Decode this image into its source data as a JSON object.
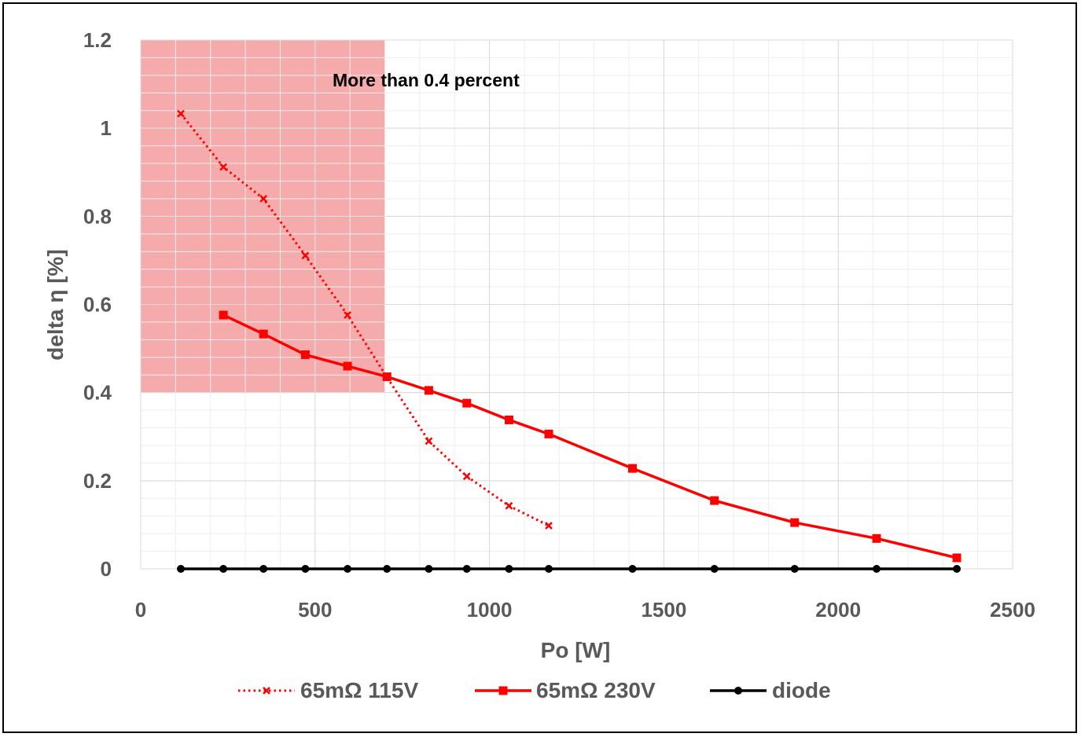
{
  "chart_data": {
    "type": "line",
    "xlabel": "Po [W]",
    "ylabel": "delta η [%]",
    "xlim": [
      0,
      2500
    ],
    "ylim": [
      0,
      1.2
    ],
    "x_ticks": [
      "0",
      "500",
      "1000",
      "1500",
      "2000",
      "2500"
    ],
    "y_ticks": [
      "0",
      "0.2",
      "0.4",
      "0.6",
      "0.8",
      "1",
      "1.2"
    ],
    "grid": true,
    "legend_position": "bottom",
    "shaded_region": {
      "x": [
        0,
        700
      ],
      "y": [
        0.4,
        1.2
      ],
      "color": "#f4a6a6"
    },
    "annotation": "More than 0.4 percent",
    "series": [
      {
        "name": "65mΩ 115V",
        "color": "#ff0000",
        "style": "dotted",
        "marker": "x",
        "x": [
          115,
          237,
          352,
          472,
          593,
          706,
          826,
          935,
          1056,
          1170
        ],
        "y": [
          1.033,
          0.912,
          0.84,
          0.711,
          0.576,
          0.435,
          0.29,
          0.21,
          0.143,
          0.098
        ]
      },
      {
        "name": "65mΩ 230V",
        "color": "#ff0000",
        "style": "solid",
        "marker": "square",
        "x": [
          237,
          352,
          472,
          593,
          706,
          826,
          935,
          1056,
          1170,
          1410,
          1645,
          1875,
          2110,
          2340
        ],
        "y": [
          0.576,
          0.533,
          0.486,
          0.46,
          0.436,
          0.405,
          0.376,
          0.338,
          0.306,
          0.228,
          0.155,
          0.105,
          0.069,
          0.025
        ]
      },
      {
        "name": "diode",
        "color": "#000000",
        "style": "solid",
        "marker": "circle",
        "x": [
          115,
          237,
          352,
          472,
          593,
          706,
          826,
          935,
          1056,
          1170,
          1410,
          1645,
          1875,
          2110,
          2340
        ],
        "y": [
          0,
          0,
          0,
          0,
          0,
          0,
          0,
          0,
          0,
          0,
          0,
          0,
          0,
          0,
          0
        ]
      }
    ]
  }
}
